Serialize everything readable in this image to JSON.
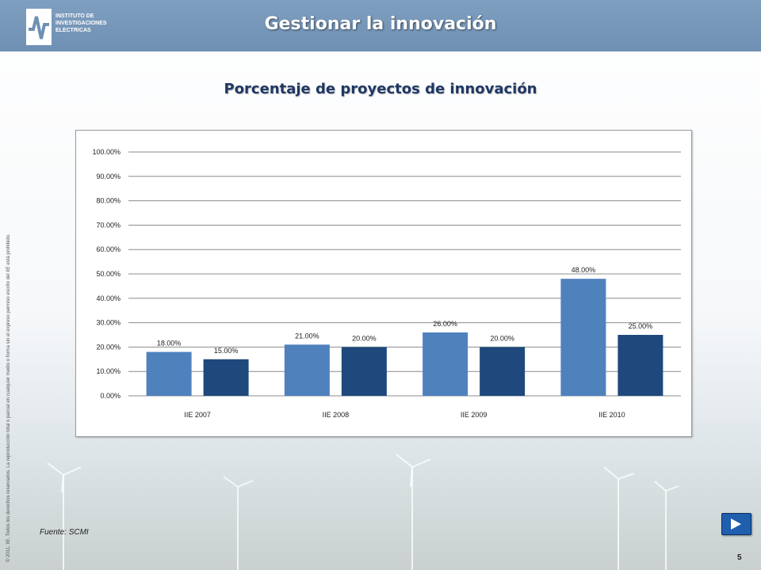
{
  "header": {
    "title": "Gestionar la innovación",
    "logo_lines": [
      "INSTITUTO DE",
      "INVESTIGACIONES",
      "ELECTRICAS"
    ]
  },
  "subtitle": "Porcentaje de proyectos de innovación",
  "side_note": "© 2011, IIE. Todos los derechos reservados. La reproducción total o parcial en cualquier medio o forma sin el expreso permiso escrito del IIE está prohibido.",
  "source": "Fuente: SCMI",
  "page_number": "5",
  "nav": {
    "next_icon": "play-next-icon"
  },
  "colors": {
    "header": "#7596b9",
    "series1": "#4f81bd",
    "series2": "#1f497d",
    "title": "#1f3864"
  },
  "chart_data": {
    "type": "bar",
    "categories": [
      "IIE 2007",
      "IIE 2008",
      "IIE 2009",
      "IIE 2010"
    ],
    "series": [
      {
        "values": [
          18,
          21,
          26,
          48
        ],
        "labels": [
          "18.00%",
          "21.00%",
          "26.00%",
          "48.00%"
        ]
      },
      {
        "values": [
          15,
          20,
          20,
          25
        ],
        "labels": [
          "15.00%",
          "20.00%",
          "20.00%",
          "25.00%"
        ]
      }
    ],
    "ylim": [
      0,
      100
    ],
    "yticks": [
      "0.00%",
      "10.00%",
      "20.00%",
      "30.00%",
      "40.00%",
      "50.00%",
      "60.00%",
      "70.00%",
      "80.00%",
      "90.00%",
      "100.00%"
    ],
    "grid": true,
    "legend": "none"
  }
}
